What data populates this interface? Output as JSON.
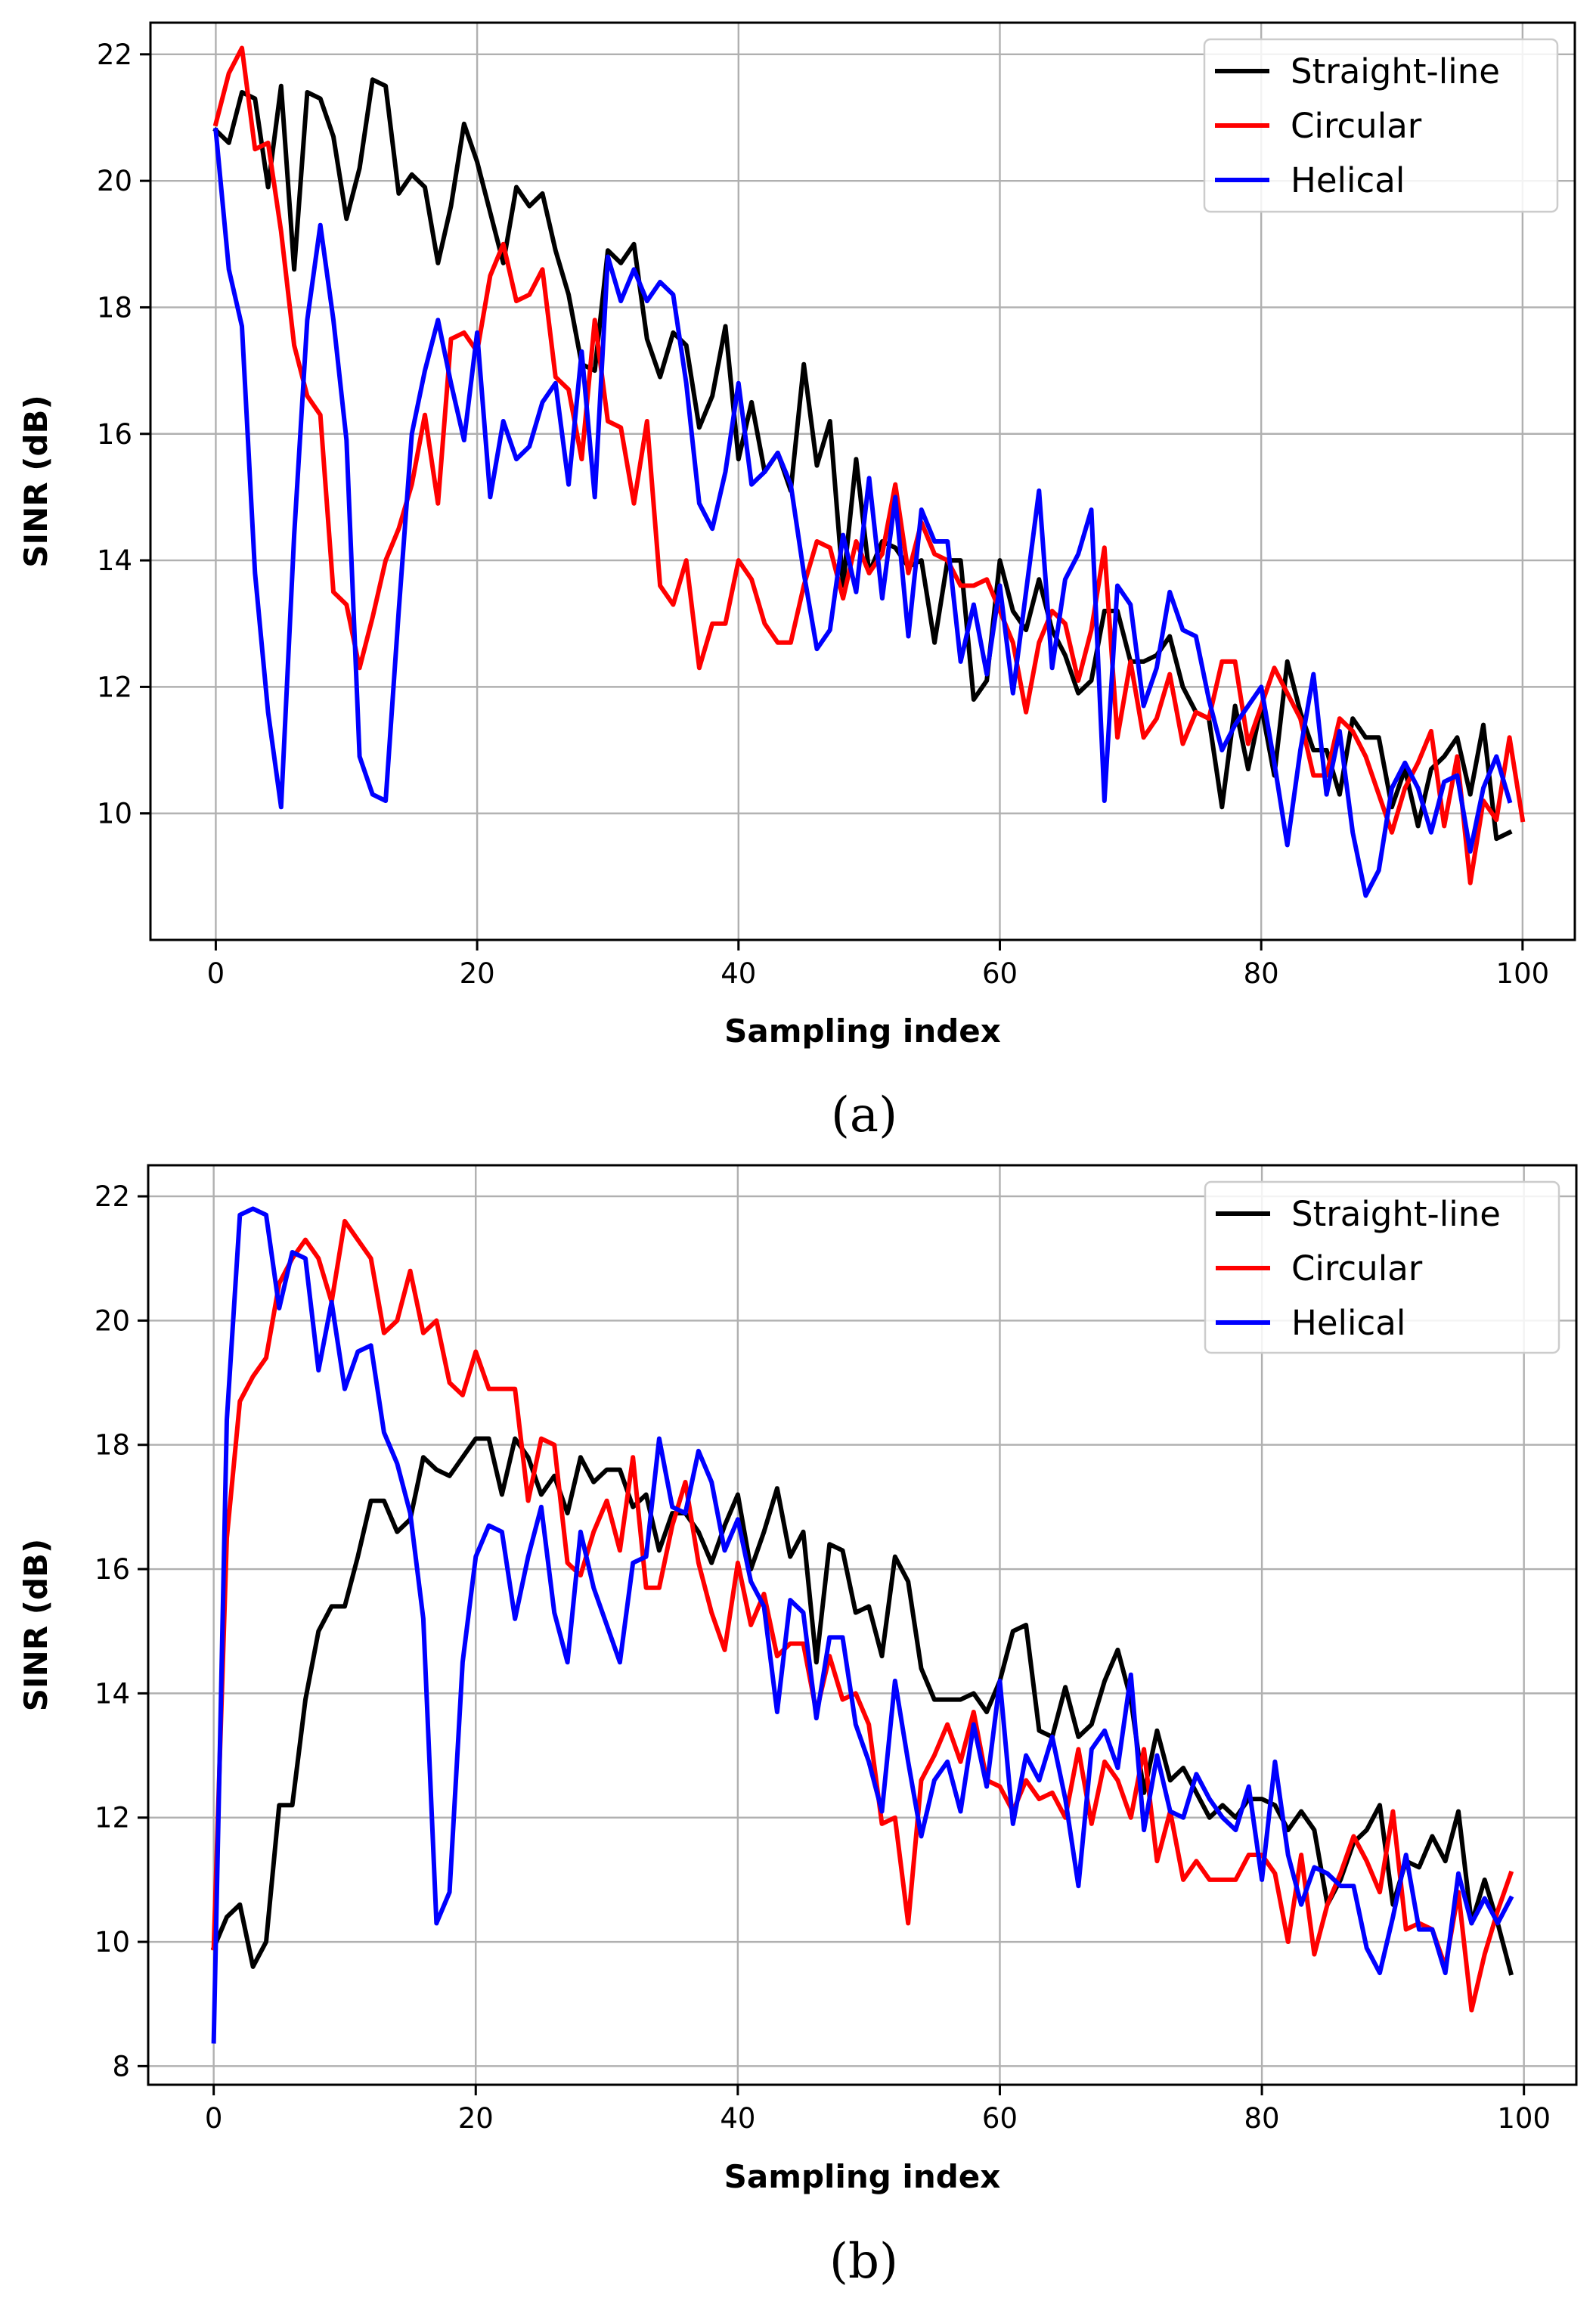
{
  "chart_data": [
    {
      "type": "line",
      "caption": "(a)",
      "xlabel": "Sampling index",
      "ylabel": "SINR (dB)",
      "xlim": [
        -5,
        104
      ],
      "ylim": [
        8.0,
        22.5
      ],
      "xticks": [
        0,
        20,
        40,
        60,
        80,
        100
      ],
      "yticks": [
        10,
        12,
        14,
        16,
        18,
        20,
        22
      ],
      "grid": true,
      "legend_position": "top-right",
      "series": [
        {
          "name": "Straight-line",
          "color": "#000000",
          "values": [
            20.8,
            20.6,
            21.4,
            21.3,
            19.9,
            21.5,
            18.6,
            21.4,
            21.3,
            20.7,
            19.4,
            20.2,
            21.6,
            21.5,
            19.8,
            20.1,
            19.9,
            18.7,
            19.6,
            20.9,
            20.3,
            19.5,
            18.7,
            19.9,
            19.6,
            19.8,
            18.9,
            18.2,
            17.1,
            17.0,
            18.9,
            18.7,
            19.0,
            17.5,
            16.9,
            17.6,
            17.4,
            16.1,
            16.6,
            17.7,
            15.6,
            16.5,
            15.4,
            15.7,
            15.1,
            17.1,
            15.5,
            16.2,
            13.6,
            15.6,
            13.8,
            14.3,
            14.2,
            13.9,
            14.0,
            12.7,
            14.0,
            14.0,
            11.8,
            12.1,
            14.0,
            13.2,
            12.9,
            13.7,
            12.9,
            12.5,
            11.9,
            12.1,
            13.2,
            13.2,
            12.4,
            12.4,
            12.5,
            12.8,
            12.0,
            11.6,
            11.5,
            10.1,
            11.7,
            10.7,
            11.7,
            10.6,
            12.4,
            11.6,
            11.0,
            11.0,
            10.3,
            11.5,
            11.2,
            11.2,
            10.1,
            10.7,
            9.8,
            10.7,
            10.9,
            11.2,
            10.3,
            11.4,
            9.6,
            9.7
          ]
        },
        {
          "name": "Circular",
          "color": "#ff0000",
          "values": [
            20.9,
            21.7,
            22.1,
            20.5,
            20.6,
            19.2,
            17.4,
            16.6,
            16.3,
            13.5,
            13.3,
            12.3,
            13.1,
            14.0,
            14.5,
            15.2,
            16.3,
            14.9,
            17.5,
            17.6,
            17.3,
            18.5,
            19.0,
            18.1,
            18.2,
            18.6,
            16.9,
            16.7,
            15.6,
            17.8,
            16.2,
            16.1,
            14.9,
            16.2,
            13.6,
            13.3,
            14.0,
            12.3,
            13.0,
            13.0,
            14.0,
            13.7,
            13.0,
            12.7,
            12.7,
            13.6,
            14.3,
            14.2,
            13.4,
            14.3,
            13.8,
            14.1,
            15.2,
            13.8,
            14.6,
            14.1,
            14.0,
            13.6,
            13.6,
            13.7,
            13.2,
            12.7,
            11.6,
            12.7,
            13.2,
            13.0,
            12.1,
            12.9,
            14.2,
            11.2,
            12.4,
            11.2,
            11.5,
            12.2,
            11.1,
            11.6,
            11.5,
            12.4,
            12.4,
            11.1,
            11.7,
            12.3,
            11.9,
            11.5,
            10.6,
            10.6,
            11.5,
            11.3,
            10.9,
            10.3,
            9.7,
            10.4,
            10.8,
            11.3,
            9.8,
            10.9,
            8.9,
            10.2,
            9.9,
            11.2,
            9.9
          ]
        },
        {
          "name": "Helical",
          "color": "#0000ff",
          "values": [
            20.8,
            18.6,
            17.7,
            13.8,
            11.6,
            10.1,
            14.4,
            17.8,
            19.3,
            17.8,
            15.9,
            10.9,
            10.3,
            10.2,
            13.2,
            16.0,
            17.0,
            17.8,
            16.8,
            15.9,
            17.6,
            15.0,
            16.2,
            15.6,
            15.8,
            16.5,
            16.8,
            15.2,
            17.3,
            15.0,
            18.8,
            18.1,
            18.6,
            18.1,
            18.4,
            18.2,
            16.8,
            14.9,
            14.5,
            15.4,
            16.8,
            15.2,
            15.4,
            15.7,
            15.2,
            13.8,
            12.6,
            12.9,
            14.4,
            13.5,
            15.3,
            13.4,
            15.0,
            12.8,
            14.8,
            14.3,
            14.3,
            12.4,
            13.3,
            12.2,
            13.6,
            11.9,
            13.5,
            15.1,
            12.3,
            13.7,
            14.1,
            14.8,
            10.2,
            13.6,
            13.3,
            11.7,
            12.3,
            13.5,
            12.9,
            12.8,
            11.8,
            11.0,
            11.4,
            11.7,
            12.0,
            10.8,
            9.5,
            11.0,
            12.2,
            10.3,
            11.3,
            9.7,
            8.7,
            9.1,
            10.4,
            10.8,
            10.4,
            9.7,
            10.5,
            10.6,
            9.4,
            10.4,
            10.9,
            10.2
          ]
        }
      ]
    },
    {
      "type": "line",
      "caption": "(b)",
      "xlabel": "Sampling index",
      "ylabel": "SINR (dB)",
      "xlim": [
        -5,
        104
      ],
      "ylim": [
        7.7,
        22.5
      ],
      "xticks": [
        0,
        20,
        40,
        60,
        80,
        100
      ],
      "yticks": [
        8,
        10,
        12,
        14,
        16,
        18,
        20,
        22
      ],
      "grid": true,
      "legend_position": "top-right",
      "series": [
        {
          "name": "Straight-line",
          "color": "#000000",
          "values": [
            9.9,
            10.4,
            10.6,
            9.6,
            10.0,
            12.2,
            12.2,
            13.9,
            15.0,
            15.4,
            15.4,
            16.2,
            17.1,
            17.1,
            16.6,
            16.8,
            17.8,
            17.6,
            17.5,
            17.8,
            18.1,
            18.1,
            17.2,
            18.1,
            17.8,
            17.2,
            17.5,
            16.9,
            17.8,
            17.4,
            17.6,
            17.6,
            17.0,
            17.2,
            16.3,
            16.9,
            16.9,
            16.6,
            16.1,
            16.7,
            17.2,
            16.0,
            16.6,
            17.3,
            16.2,
            16.6,
            14.5,
            16.4,
            16.3,
            15.3,
            15.4,
            14.6,
            16.2,
            15.8,
            14.4,
            13.9,
            13.9,
            13.9,
            14.0,
            13.7,
            14.2,
            15.0,
            15.1,
            13.4,
            13.3,
            14.1,
            13.3,
            13.5,
            14.2,
            14.7,
            13.9,
            12.4,
            13.4,
            12.6,
            12.8,
            12.4,
            12.0,
            12.2,
            12.0,
            12.3,
            12.3,
            12.2,
            11.8,
            12.1,
            11.8,
            10.6,
            11.0,
            11.6,
            11.8,
            12.2,
            10.6,
            11.3,
            11.2,
            11.7,
            11.3,
            12.1,
            10.3,
            11.0,
            10.3,
            9.5
          ]
        },
        {
          "name": "Circular",
          "color": "#ff0000",
          "values": [
            9.9,
            16.5,
            18.7,
            19.1,
            19.4,
            20.6,
            21.0,
            21.3,
            21.0,
            20.3,
            21.6,
            21.3,
            21.0,
            19.8,
            20.0,
            20.8,
            19.8,
            20.0,
            19.0,
            18.8,
            19.5,
            18.9,
            18.9,
            18.9,
            17.1,
            18.1,
            18.0,
            16.1,
            15.9,
            16.6,
            17.1,
            16.3,
            17.8,
            15.7,
            15.7,
            16.7,
            17.4,
            16.1,
            15.3,
            14.7,
            16.1,
            15.1,
            15.6,
            14.6,
            14.8,
            14.8,
            13.7,
            14.6,
            13.9,
            14.0,
            13.5,
            11.9,
            12.0,
            10.3,
            12.6,
            13.0,
            13.5,
            12.9,
            13.7,
            12.6,
            12.5,
            12.1,
            12.6,
            12.3,
            12.4,
            12.0,
            13.1,
            11.9,
            12.9,
            12.6,
            12.0,
            13.1,
            11.3,
            12.1,
            11.0,
            11.3,
            11.0,
            11.0,
            11.0,
            11.4,
            11.4,
            11.1,
            10.0,
            11.4,
            9.8,
            10.6,
            11.1,
            11.7,
            11.3,
            10.8,
            12.1,
            10.2,
            10.3,
            10.2,
            9.6,
            10.8,
            8.9,
            9.8,
            10.5,
            11.1
          ]
        },
        {
          "name": "Helical",
          "color": "#0000ff",
          "values": [
            8.4,
            18.4,
            21.7,
            21.8,
            21.7,
            20.2,
            21.1,
            21.0,
            19.2,
            20.3,
            18.9,
            19.5,
            19.6,
            18.2,
            17.7,
            16.9,
            15.2,
            10.3,
            10.8,
            14.5,
            16.2,
            16.7,
            16.6,
            15.2,
            16.2,
            17.0,
            15.3,
            14.5,
            16.6,
            15.7,
            15.1,
            14.5,
            16.1,
            16.2,
            18.1,
            17.0,
            16.9,
            17.9,
            17.4,
            16.3,
            16.8,
            15.8,
            15.4,
            13.7,
            15.5,
            15.3,
            13.6,
            14.9,
            14.9,
            13.5,
            12.9,
            12.1,
            14.2,
            12.9,
            11.7,
            12.6,
            12.9,
            12.1,
            13.5,
            12.5,
            14.2,
            11.9,
            13.0,
            12.6,
            13.3,
            12.3,
            10.9,
            13.1,
            13.4,
            12.8,
            14.3,
            11.8,
            13.0,
            12.1,
            12.0,
            12.7,
            12.3,
            12.0,
            11.8,
            12.5,
            11.0,
            12.9,
            11.4,
            10.6,
            11.2,
            11.1,
            10.9,
            10.9,
            9.9,
            9.5,
            10.4,
            11.4,
            10.2,
            10.2,
            9.5,
            11.1,
            10.3,
            10.7,
            10.3,
            10.7
          ]
        }
      ]
    }
  ]
}
